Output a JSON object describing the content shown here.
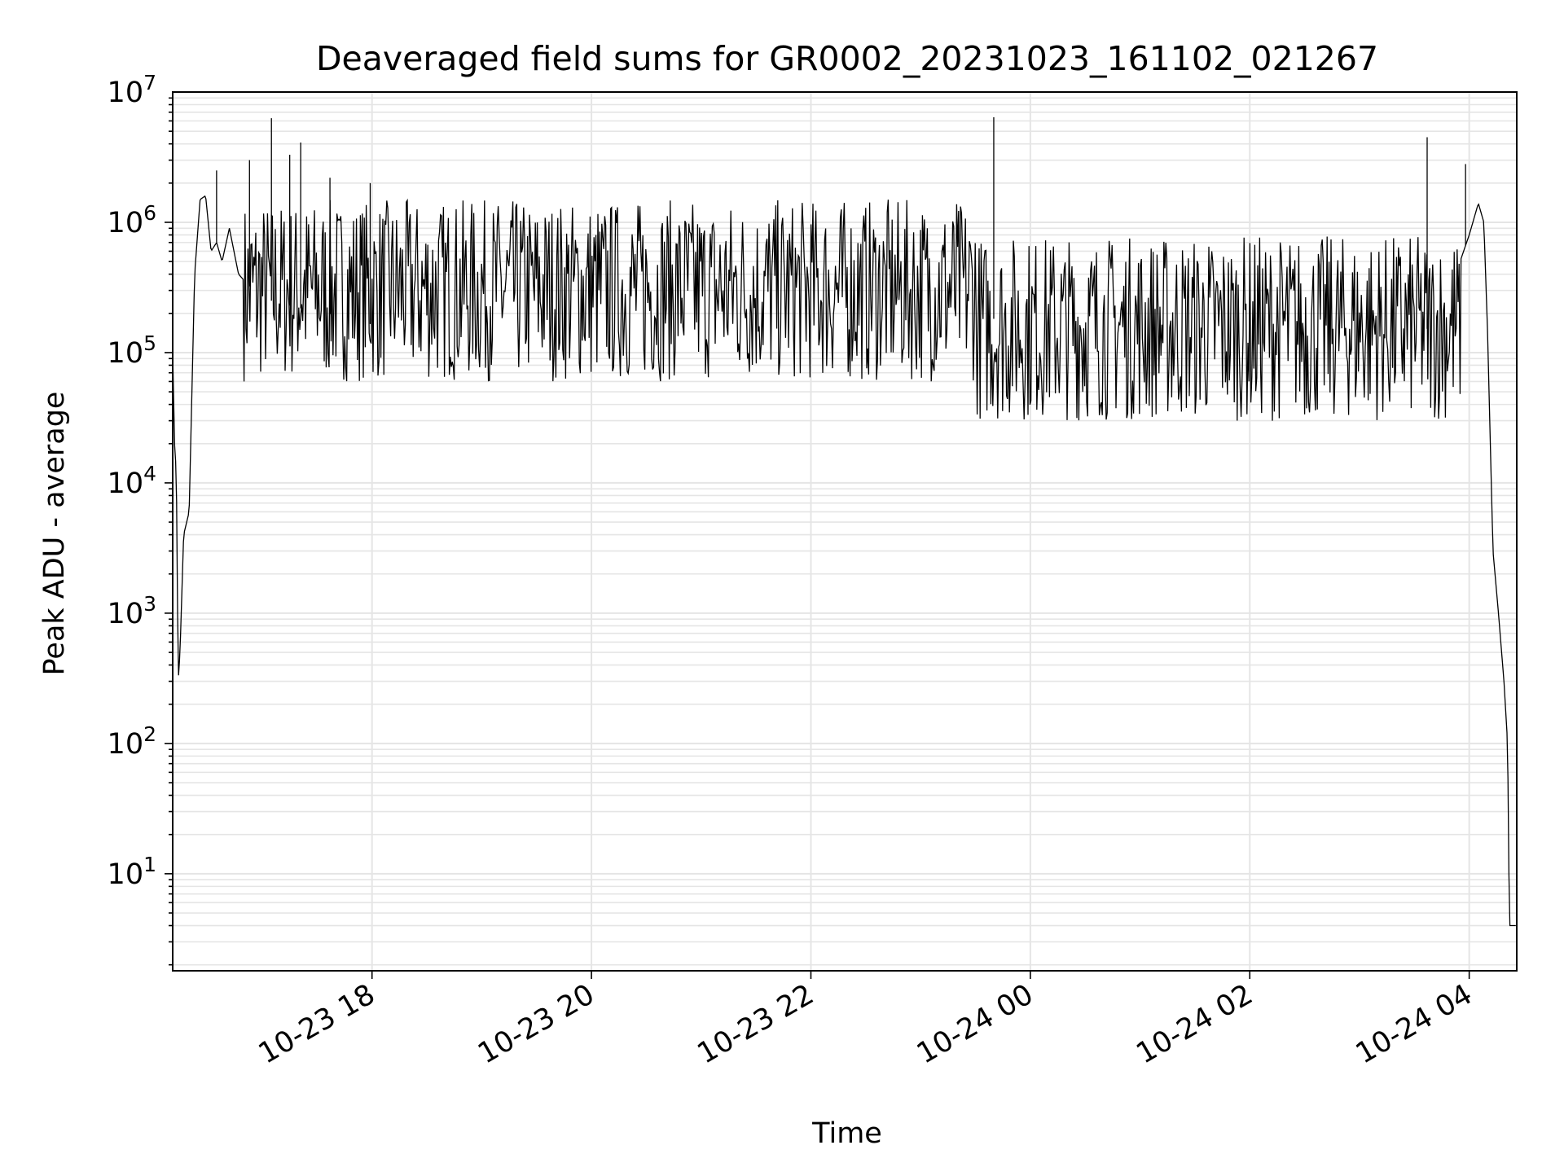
{
  "chart_data": {
    "type": "line",
    "title": "Deaveraged field sums for GR0002_20231023_161102_021267",
    "xlabel": "Time",
    "ylabel": "Peak ADU - average",
    "xlim": [
      "2023-10-23 16:11",
      "2023-10-24 04:26"
    ],
    "ylim": [
      1.8,
      10000000
    ],
    "yscale": "log",
    "grid": true,
    "legend": "none",
    "line_color": "#000000",
    "grid_color": "#e5e5e5",
    "x_ticks": [
      {
        "value": "2023-10-23 18:00",
        "label": "10-23 18"
      },
      {
        "value": "2023-10-23 20:00",
        "label": "10-23 20"
      },
      {
        "value": "2023-10-23 22:00",
        "label": "10-23 22"
      },
      {
        "value": "2023-10-24 00:00",
        "label": "10-24 00"
      },
      {
        "value": "2023-10-24 02:00",
        "label": "10-24 02"
      },
      {
        "value": "2023-10-24 04:00",
        "label": "10-24 04"
      }
    ],
    "y_ticks": [
      {
        "value": 10,
        "base": "10",
        "exp": "1"
      },
      {
        "value": 100,
        "base": "10",
        "exp": "2"
      },
      {
        "value": 1000,
        "base": "10",
        "exp": "3"
      },
      {
        "value": 10000,
        "base": "10",
        "exp": "4"
      },
      {
        "value": 100000,
        "base": "10",
        "exp": "5"
      },
      {
        "value": 1000000,
        "base": "10",
        "exp": "6"
      },
      {
        "value": 10000000,
        "base": "10",
        "exp": "7"
      }
    ],
    "series": [
      {
        "x": [
          "2023-10-23 16:11",
          "2023-10-23 16:12",
          "2023-10-23 16:13",
          "2023-10-23 16:14",
          "2023-10-23 16:15",
          "2023-10-23 16:17",
          "2023-10-23 16:20",
          "2023-10-23 16:23",
          "2023-10-23 16:26",
          "2023-10-23 16:29",
          "2023-10-23 16:32",
          "2023-10-23 16:35",
          "2023-10-23 16:38",
          "2023-10-23 16:42",
          "2023-10-23 16:47",
          "2023-10-23 16:55",
          "2023-10-23 17:05",
          "2023-10-23 17:20",
          "2023-10-23 17:35",
          "2023-10-23 17:50",
          "2023-10-23 18:10",
          "2023-10-23 18:30",
          "2023-10-23 18:45",
          "2023-10-23 19:00",
          "2023-10-23 19:15",
          "2023-10-23 19:30",
          "2023-10-23 20:00",
          "2023-10-23 20:30",
          "2023-10-23 21:00",
          "2023-10-23 21:30",
          "2023-10-23 22:00",
          "2023-10-23 22:30",
          "2023-10-23 23:00",
          "2023-10-23 23:30",
          "2023-10-24 00:00",
          "2023-10-24 00:30",
          "2023-10-24 01:00",
          "2023-10-24 01:30",
          "2023-10-24 02:00",
          "2023-10-24 02:30",
          "2023-10-24 03:00",
          "2023-10-24 03:30",
          "2023-10-24 03:45",
          "2023-10-24 03:55",
          "2023-10-24 04:00",
          "2023-10-24 04:05",
          "2023-10-24 04:08",
          "2023-10-24 04:10",
          "2023-10-24 04:13",
          "2023-10-24 04:16",
          "2023-10-24 04:19",
          "2023-10-24 04:21",
          "2023-10-24 04:22",
          "2023-10-24 04:25"
        ],
        "y": [
          100000,
          20000,
          12000,
          300,
          500,
          4000,
          6000,
          400000,
          1500000,
          1600000,
          600000,
          700000,
          500000,
          900000,
          400000,
          300000,
          250000,
          220000,
          200000,
          180000,
          150000,
          120000,
          90000,
          80000,
          500000,
          700000,
          800000,
          700000,
          800000,
          800000,
          600000,
          500000,
          300000,
          200000,
          150000,
          120000,
          100000,
          100000,
          80000,
          70000,
          80000,
          120000,
          200000,
          500000,
          800000,
          1400000,
          1000000,
          150000,
          3000,
          1000,
          300,
          100,
          4,
          4
        ],
        "spikes": [
          {
            "x": "2023-10-23 16:35",
            "y": 2500000
          },
          {
            "x": "2023-10-23 16:53",
            "y": 3000000
          },
          {
            "x": "2023-10-23 17:05",
            "y": 6300000
          },
          {
            "x": "2023-10-23 17:15",
            "y": 3300000
          },
          {
            "x": "2023-10-23 17:21",
            "y": 4100000
          },
          {
            "x": "2023-10-23 17:37",
            "y": 2200000
          },
          {
            "x": "2023-10-23 17:59",
            "y": 2000000
          },
          {
            "x": "2023-10-23 23:40",
            "y": 6400000
          },
          {
            "x": "2023-10-24 03:37",
            "y": 4500000
          },
          {
            "x": "2023-10-24 03:58",
            "y": 2800000
          }
        ]
      }
    ]
  }
}
